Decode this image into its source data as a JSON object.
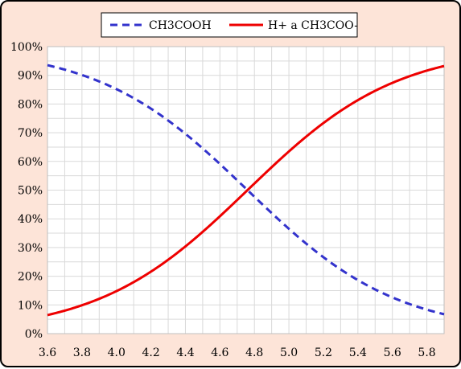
{
  "chart_data": {
    "type": "line",
    "title": "",
    "xlabel": "",
    "ylabel": "",
    "xlim": [
      3.6,
      5.9
    ],
    "ylim": [
      0,
      100
    ],
    "x_ticks": [
      "3.6",
      "3.8",
      "4.0",
      "4.2",
      "4.4",
      "4.6",
      "4.8",
      "5.0",
      "5.2",
      "5.4",
      "5.6",
      "5.8"
    ],
    "y_ticks": [
      "0%",
      "10%",
      "20%",
      "30%",
      "40%",
      "50%",
      "60%",
      "70%",
      "80%",
      "90%",
      "100%"
    ],
    "grid": true,
    "legend": "top",
    "pKa": 4.76,
    "x": [
      3.6,
      3.7,
      3.8,
      3.9,
      4.0,
      4.1,
      4.2,
      4.3,
      4.4,
      4.5,
      4.6,
      4.7,
      4.8,
      4.9,
      5.0,
      5.1,
      5.2,
      5.3,
      5.4,
      5.5,
      5.6,
      5.7,
      5.8,
      5.9
    ],
    "series": [
      {
        "name": "CH3COOH",
        "color": "#3333cc",
        "style": "dashed",
        "values": [
          93.5,
          92.0,
          90.1,
          87.9,
          85.2,
          82.0,
          78.4,
          74.2,
          69.6,
          64.5,
          59.1,
          53.5,
          47.7,
          42.1,
          36.6,
          31.4,
          26.6,
          22.2,
          18.5,
          15.2,
          12.4,
          10.1,
          8.2,
          6.6
        ]
      },
      {
        "name": "H+ a CH3COO-",
        "color": "#ee0000",
        "style": "solid",
        "values": [
          6.5,
          8.0,
          9.9,
          12.1,
          14.8,
          18.0,
          21.6,
          25.8,
          30.4,
          35.5,
          40.9,
          46.5,
          52.3,
          57.9,
          63.4,
          68.6,
          73.4,
          77.8,
          81.5,
          84.8,
          87.6,
          89.9,
          91.8,
          93.4
        ]
      }
    ]
  }
}
